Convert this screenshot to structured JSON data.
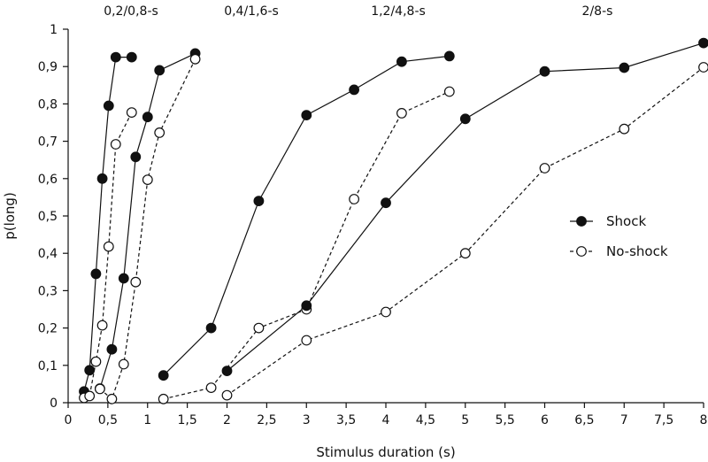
{
  "chart_data": {
    "type": "line",
    "xlabel": "Stimulus duration (s)",
    "ylabel": "p(long)",
    "xlim": [
      0,
      8
    ],
    "ylim": [
      0,
      1
    ],
    "x_ticks": [
      "0",
      "0,5",
      "1",
      "1,5",
      "2",
      "2,5",
      "3",
      "3,5",
      "4",
      "4,5",
      "5",
      "5,5",
      "6",
      "6,5",
      "7",
      "7,5",
      "8"
    ],
    "x_tick_values": [
      0,
      0.5,
      1,
      1.5,
      2,
      2.5,
      3,
      3.5,
      4,
      4.5,
      5,
      5.5,
      6,
      6.5,
      7,
      7.5,
      8
    ],
    "y_ticks": [
      "0",
      "0,1",
      "0,2",
      "0,3",
      "0,4",
      "0,5",
      "0,6",
      "0,7",
      "0,8",
      "0,9",
      "1"
    ],
    "y_tick_values": [
      0,
      0.1,
      0.2,
      0.3,
      0.4,
      0.5,
      0.6,
      0.7,
      0.8,
      0.9,
      1
    ],
    "grid": false,
    "legend_position": "right",
    "groups": [
      {
        "label": "0,2/0,8-s",
        "series": [
          {
            "name": "Shock",
            "x": [
              0.2,
              0.27,
              0.35,
              0.43,
              0.51,
              0.6,
              0.8
            ],
            "y": [
              0.03,
              0.087,
              0.345,
              0.6,
              0.795,
              0.925,
              0.925
            ]
          },
          {
            "name": "No-shock",
            "x": [
              0.2,
              0.27,
              0.35,
              0.43,
              0.51,
              0.6,
              0.8
            ],
            "y": [
              0.013,
              0.018,
              0.11,
              0.207,
              0.418,
              0.692,
              0.777
            ]
          }
        ]
      },
      {
        "label": "0,4/1,6-s",
        "series": [
          {
            "name": "Shock",
            "x": [
              0.4,
              0.55,
              0.7,
              0.85,
              1.0,
              1.15,
              1.6
            ],
            "y": [
              0.038,
              0.143,
              0.333,
              0.658,
              0.765,
              0.89,
              0.935
            ]
          },
          {
            "name": "No-shock",
            "x": [
              0.4,
              0.55,
              0.7,
              0.85,
              1.0,
              1.15,
              1.6
            ],
            "y": [
              0.037,
              0.01,
              0.103,
              0.323,
              0.597,
              0.723,
              0.92
            ]
          }
        ]
      },
      {
        "label": "1,2/4,8-s",
        "series": [
          {
            "name": "Shock",
            "x": [
              1.2,
              1.8,
              2.4,
              3.0,
              3.6,
              4.2,
              4.8
            ],
            "y": [
              0.073,
              0.2,
              0.54,
              0.77,
              0.838,
              0.913,
              0.928
            ]
          },
          {
            "name": "No-shock",
            "x": [
              1.2,
              1.8,
              2.4,
              3.0,
              3.6,
              4.2,
              4.8
            ],
            "y": [
              0.01,
              0.04,
              0.2,
              0.25,
              0.545,
              0.775,
              0.833
            ]
          }
        ]
      },
      {
        "label": "2/8-s",
        "series": [
          {
            "name": "Shock",
            "x": [
              2.0,
              3.0,
              4.0,
              5.0,
              6.0,
              7.0,
              8.0
            ],
            "y": [
              0.085,
              0.26,
              0.535,
              0.76,
              0.887,
              0.897,
              0.963
            ]
          },
          {
            "name": "No-shock",
            "x": [
              2.0,
              3.0,
              4.0,
              5.0,
              6.0,
              7.0,
              8.0
            ],
            "y": [
              0.02,
              0.167,
              0.243,
              0.4,
              0.628,
              0.733,
              0.898
            ]
          }
        ]
      }
    ],
    "legend": [
      {
        "name": "Shock",
        "marker": "filled-circle",
        "line": "solid"
      },
      {
        "name": "No-shock",
        "marker": "open-circle",
        "line": "dashed"
      }
    ],
    "colors": {
      "line": "#111111",
      "fill_shock": "#111111",
      "fill_noshock": "#ffffff"
    }
  }
}
